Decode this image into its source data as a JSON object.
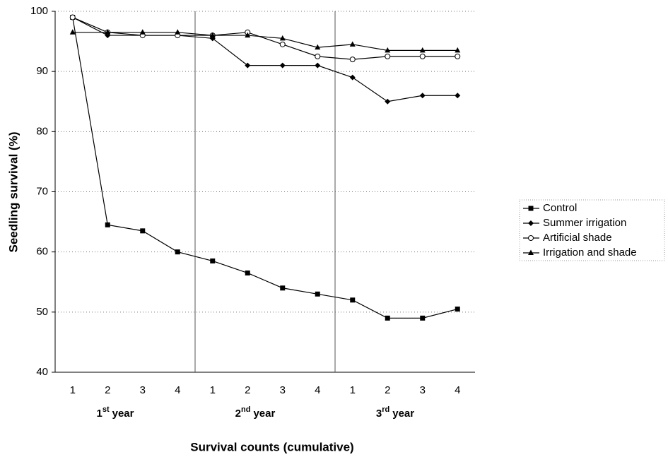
{
  "chart_data": {
    "type": "line",
    "y_label": "Seedling survival (%)",
    "x_label": "Survival counts (cumulative)",
    "categories": [
      "1",
      "2",
      "3",
      "4",
      "1",
      "2",
      "3",
      "4",
      "1",
      "2",
      "3",
      "4"
    ],
    "groups": [
      {
        "number": "1",
        "sup": "st",
        "word": "year"
      },
      {
        "number": "2",
        "sup": "nd",
        "word": "year"
      },
      {
        "number": "3",
        "sup": "rd",
        "word": "year"
      }
    ],
    "ylim": [
      40,
      100
    ],
    "yticks": [
      40,
      50,
      60,
      70,
      80,
      90,
      100
    ],
    "grid": true,
    "legend": "right",
    "series": [
      {
        "name": "Control",
        "color": "#000000",
        "marker": "square",
        "values": [
          99,
          64.5,
          63.5,
          60,
          58.5,
          56.5,
          54,
          53,
          52,
          49,
          49,
          50.5
        ]
      },
      {
        "name": "Summer irrigation",
        "color": "#000000",
        "marker": "diamond",
        "values": [
          99,
          96,
          96,
          96,
          95.5,
          91,
          91,
          91,
          89,
          85,
          86,
          86
        ]
      },
      {
        "name": "Artificial shade",
        "color": "#000000",
        "marker": "circle",
        "values": [
          99,
          96.5,
          96,
          96,
          96,
          96.5,
          94.5,
          92.5,
          92,
          92.5,
          92.5,
          92.5
        ]
      },
      {
        "name": "Irrigation and shade",
        "color": "#000000",
        "marker": "triangle",
        "values": [
          96.5,
          96.5,
          96.5,
          96.5,
          96,
          96,
          95.5,
          94,
          94.5,
          93.5,
          93.5,
          93.5
        ]
      }
    ]
  }
}
